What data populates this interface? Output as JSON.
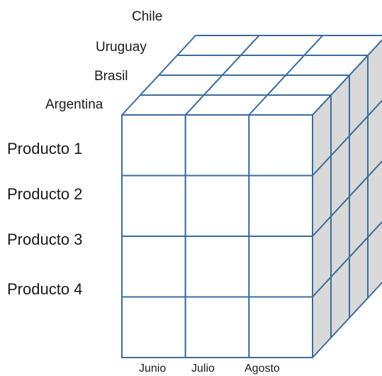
{
  "depth_labels": [
    "Argentina",
    "Brasil",
    "Uruguay",
    "Chile"
  ],
  "row_labels": [
    "Producto 1",
    "Producto 2",
    "Producto 3",
    "Producto 4"
  ],
  "column_labels": [
    "Junio",
    "Julio",
    "Agosto"
  ],
  "colors": {
    "grid_line": "#3c6c9c",
    "side_face": "#d9d9d9",
    "face": "#ffffff",
    "text": "#1a1a1a"
  }
}
